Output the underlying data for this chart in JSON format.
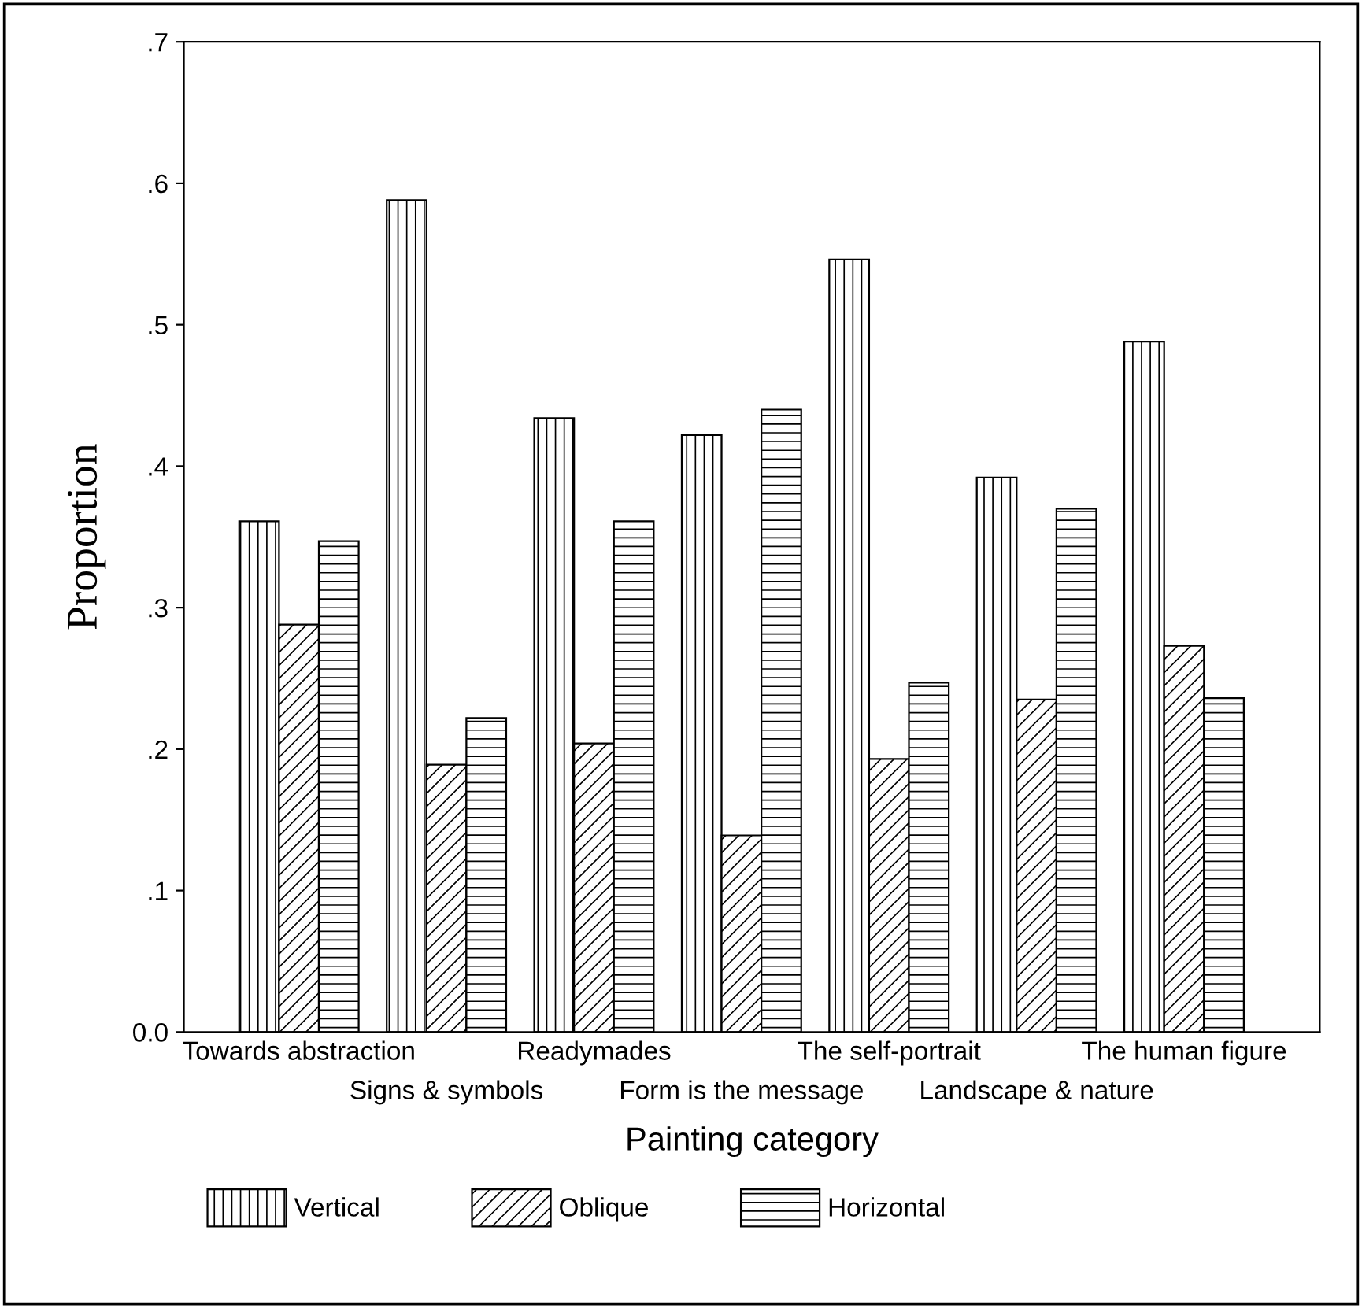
{
  "chart_data": {
    "type": "bar",
    "xlabel": "Painting category",
    "ylabel": "Proportion",
    "categories": [
      "Towards abstraction",
      "Signs & symbols",
      "Readymades",
      "Form is the message",
      "The self-portrait",
      "Landscape & nature",
      "The human figure"
    ],
    "series": [
      {
        "name": "Vertical",
        "color": "#000000",
        "values": [
          0.361,
          0.588,
          0.434,
          0.422,
          0.546,
          0.392,
          0.488
        ]
      },
      {
        "name": "Oblique",
        "color": "#000000",
        "values": [
          0.288,
          0.189,
          0.204,
          0.139,
          0.193,
          0.235,
          0.273
        ]
      },
      {
        "name": "Horizontal",
        "color": "#000000",
        "values": [
          0.347,
          0.222,
          0.361,
          0.44,
          0.247,
          0.37,
          0.236
        ]
      }
    ],
    "ylim": [
      0,
      0.7
    ],
    "yticks": [
      {
        "value": 0,
        "label": "0.0"
      },
      {
        "value": 0.1,
        "label": ".1"
      },
      {
        "value": 0.2,
        "label": ".2"
      },
      {
        "value": 0.3,
        "label": ".3"
      },
      {
        "value": 0.4,
        "label": ".4"
      },
      {
        "value": 0.5,
        "label": ".5"
      },
      {
        "value": 0.6,
        "label": ".6"
      },
      {
        "value": 0.7,
        "label": ".7"
      }
    ],
    "grid": false,
    "legend": "bottom"
  }
}
